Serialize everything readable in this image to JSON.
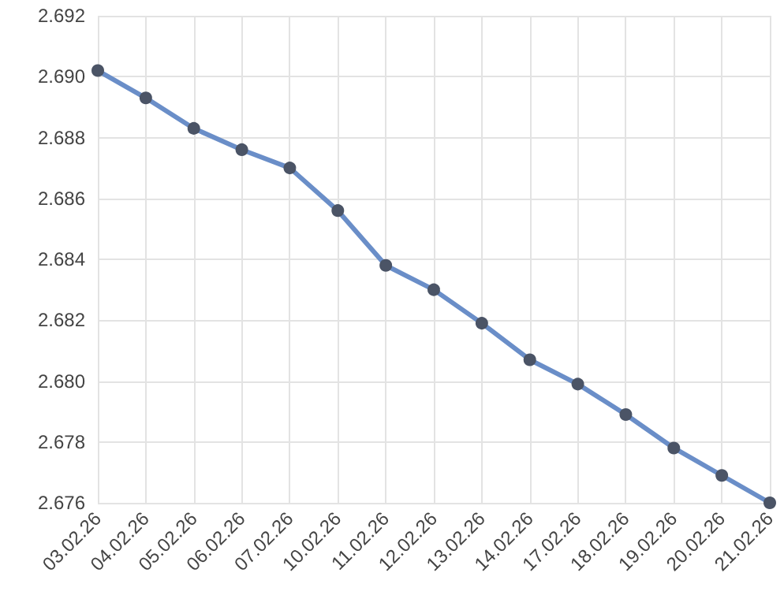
{
  "chart_data": {
    "type": "line",
    "categories": [
      "03.02.26",
      "04.02.26",
      "05.02.26",
      "06.02.26",
      "07.02.26",
      "10.02.26",
      "11.02.26",
      "12.02.26",
      "13.02.26",
      "14.02.26",
      "17.02.26",
      "18.02.26",
      "19.02.26",
      "20.02.26",
      "21.02.26"
    ],
    "series": [
      {
        "color": "#6a8ec8",
        "values": [
          2.6902,
          2.6893,
          2.6883,
          2.6876,
          2.687,
          2.6856,
          2.6838,
          2.683,
          2.6819,
          2.6807,
          2.6799,
          2.6789,
          2.6778,
          2.6769,
          2.676
        ]
      }
    ],
    "ylim": [
      2.676,
      2.692
    ],
    "yticks": [
      {
        "value": 2.676,
        "label": "2.676"
      },
      {
        "value": 2.678,
        "label": "2.678"
      },
      {
        "value": 2.68,
        "label": "2.680"
      },
      {
        "value": 2.682,
        "label": "2.682"
      },
      {
        "value": 2.684,
        "label": "2.684"
      },
      {
        "value": 2.686,
        "label": "2.686"
      },
      {
        "value": 2.688,
        "label": "2.688"
      },
      {
        "value": 2.69,
        "label": "2.690"
      },
      {
        "value": 2.692,
        "label": "2.692"
      }
    ],
    "grid": true,
    "marker": "circle",
    "line_style": "solid"
  }
}
